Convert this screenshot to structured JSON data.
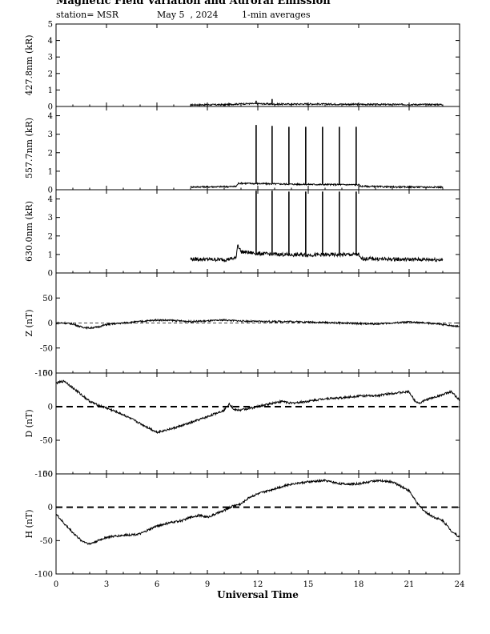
{
  "header": {
    "title": "Magnetic Field Variation and Auroral Emission",
    "station": "station= MSR",
    "date": "May 5  , 2024",
    "averaging": "1-min averages"
  },
  "colors": {
    "trace": "#000000",
    "axis": "#000000",
    "background": "#ffffff"
  },
  "chart_data": [
    {
      "type": "line",
      "ylabel": "427.8nm (kR)",
      "ylim": [
        0,
        5
      ],
      "yticks": [
        0,
        1,
        2,
        3,
        4,
        5
      ],
      "data_x_range": [
        8.0,
        23.0
      ],
      "series": [
        {
          "values": [
            [
              8,
              0.1
            ],
            [
              10,
              0.11
            ],
            [
              11,
              0.16
            ],
            [
              12,
              0.17
            ],
            [
              13,
              0.14
            ],
            [
              15,
              0.15
            ],
            [
              18,
              0.13
            ],
            [
              20,
              0.12
            ],
            [
              23,
              0.12
            ]
          ]
        }
      ],
      "spikes": [
        {
          "x": 11.9,
          "y": 0.35
        },
        {
          "x": 12.85,
          "y": 0.45
        }
      ]
    },
    {
      "type": "line",
      "ylabel": "557.7nm (kR)",
      "ylim": [
        0,
        4.5
      ],
      "yticks": [
        0,
        1,
        2,
        3,
        4
      ],
      "data_x_range": [
        8.0,
        23.0
      ],
      "series": [
        {
          "values": [
            [
              8,
              0.15
            ],
            [
              10.7,
              0.17
            ],
            [
              10.85,
              0.35
            ],
            [
              12,
              0.33
            ],
            [
              14,
              0.3
            ],
            [
              16,
              0.28
            ],
            [
              18,
              0.27
            ],
            [
              18.1,
              0.19
            ],
            [
              20,
              0.15
            ],
            [
              23,
              0.14
            ]
          ]
        }
      ],
      "spikes": [
        {
          "x": 11.9,
          "y": 3.5
        },
        {
          "x": 12.85,
          "y": 3.45
        },
        {
          "x": 13.85,
          "y": 3.4
        },
        {
          "x": 14.85,
          "y": 3.4
        },
        {
          "x": 15.85,
          "y": 3.4
        },
        {
          "x": 16.85,
          "y": 3.4
        },
        {
          "x": 17.85,
          "y": 3.4
        }
      ]
    },
    {
      "type": "line",
      "ylabel": "630.0nm (kR)",
      "ylim": [
        0,
        4.5
      ],
      "yticks": [
        0,
        1,
        2,
        3,
        4
      ],
      "data_x_range": [
        8.0,
        23.0
      ],
      "series": [
        {
          "values": [
            [
              8,
              0.75
            ],
            [
              10,
              0.72
            ],
            [
              10.7,
              0.8
            ],
            [
              10.8,
              1.55
            ],
            [
              11,
              1.15
            ],
            [
              12,
              1.05
            ],
            [
              14,
              0.98
            ],
            [
              16,
              0.98
            ],
            [
              18,
              1.0
            ],
            [
              18.1,
              0.78
            ],
            [
              20,
              0.74
            ],
            [
              23,
              0.72
            ]
          ]
        }
      ],
      "spikes": [
        {
          "x": 11.9,
          "y": 4.45
        },
        {
          "x": 12.85,
          "y": 4.45
        },
        {
          "x": 13.85,
          "y": 4.4
        },
        {
          "x": 14.85,
          "y": 4.4
        },
        {
          "x": 15.85,
          "y": 4.4
        },
        {
          "x": 16.85,
          "y": 4.4
        },
        {
          "x": 17.85,
          "y": 4.4
        }
      ]
    },
    {
      "type": "line",
      "ylabel": "Z (nT)",
      "ylim": [
        -100,
        100
      ],
      "yticks": [
        -100,
        -50,
        0,
        50
      ],
      "baseline": 0,
      "baseline_style": "dashed-thin",
      "series": [
        {
          "values": [
            [
              0,
              0
            ],
            [
              0.5,
              0
            ],
            [
              1,
              -2
            ],
            [
              1.5,
              -8
            ],
            [
              2,
              -10
            ],
            [
              2.5,
              -8
            ],
            [
              3,
              -3
            ],
            [
              4,
              0
            ],
            [
              5,
              3
            ],
            [
              6,
              6
            ],
            [
              7,
              5
            ],
            [
              8,
              3
            ],
            [
              9,
              4
            ],
            [
              10,
              6
            ],
            [
              11,
              4
            ],
            [
              12,
              3
            ],
            [
              13,
              3
            ],
            [
              14,
              3
            ],
            [
              15,
              2
            ],
            [
              16,
              1
            ],
            [
              17,
              0
            ],
            [
              18,
              -1
            ],
            [
              19,
              -2
            ],
            [
              20,
              0
            ],
            [
              21,
              2
            ],
            [
              22,
              0
            ],
            [
              23,
              -3
            ],
            [
              24,
              -7
            ]
          ]
        }
      ]
    },
    {
      "type": "line",
      "ylabel": "D (nT)",
      "ylim": [
        -100,
        50
      ],
      "yticks": [
        -100,
        -50,
        0,
        50
      ],
      "baseline": 0,
      "baseline_style": "dashed-thick",
      "series": [
        {
          "values": [
            [
              0,
              35
            ],
            [
              0.5,
              38
            ],
            [
              1,
              28
            ],
            [
              1.5,
              18
            ],
            [
              2,
              8
            ],
            [
              2.5,
              2
            ],
            [
              3,
              -2
            ],
            [
              4,
              -12
            ],
            [
              5,
              -25
            ],
            [
              6,
              -38
            ],
            [
              7,
              -32
            ],
            [
              8,
              -24
            ],
            [
              9,
              -15
            ],
            [
              10,
              -5
            ],
            [
              10.3,
              5
            ],
            [
              10.6,
              -5
            ],
            [
              11,
              -5
            ],
            [
              12,
              0
            ],
            [
              13,
              6
            ],
            [
              13.5,
              8
            ],
            [
              14,
              5
            ],
            [
              15,
              8
            ],
            [
              16,
              12
            ],
            [
              17,
              13
            ],
            [
              18,
              16
            ],
            [
              19,
              16
            ],
            [
              20,
              20
            ],
            [
              21,
              22
            ],
            [
              21.3,
              10
            ],
            [
              21.6,
              5
            ],
            [
              22,
              10
            ],
            [
              22.5,
              14
            ],
            [
              23,
              18
            ],
            [
              23.5,
              22
            ],
            [
              24,
              10
            ]
          ]
        }
      ]
    },
    {
      "type": "line",
      "ylabel": "H (nT)",
      "ylim": [
        -100,
        50
      ],
      "yticks": [
        -100,
        -50,
        0,
        50
      ],
      "baseline": 0,
      "baseline_style": "dashed-thick",
      "series": [
        {
          "values": [
            [
              0,
              -10
            ],
            [
              0.5,
              -25
            ],
            [
              1,
              -38
            ],
            [
              1.5,
              -50
            ],
            [
              2,
              -55
            ],
            [
              2.5,
              -50
            ],
            [
              3,
              -45
            ],
            [
              4,
              -42
            ],
            [
              5,
              -40
            ],
            [
              6,
              -28
            ],
            [
              7,
              -22
            ],
            [
              7.5,
              -20
            ],
            [
              8,
              -15
            ],
            [
              8.5,
              -12
            ],
            [
              9,
              -15
            ],
            [
              9.5,
              -10
            ],
            [
              10,
              -5
            ],
            [
              10.5,
              2
            ],
            [
              11,
              5
            ],
            [
              11.5,
              15
            ],
            [
              12,
              20
            ],
            [
              13,
              28
            ],
            [
              14,
              35
            ],
            [
              15,
              38
            ],
            [
              16,
              40
            ],
            [
              17,
              35
            ],
            [
              18,
              35
            ],
            [
              19,
              40
            ],
            [
              20,
              38
            ],
            [
              21,
              25
            ],
            [
              21.5,
              5
            ],
            [
              22,
              -8
            ],
            [
              22.5,
              -15
            ],
            [
              23,
              -20
            ],
            [
              23.5,
              -35
            ],
            [
              24,
              -45
            ]
          ]
        }
      ]
    }
  ],
  "x_axis": {
    "label": "Universal Time",
    "range": [
      0,
      24
    ],
    "ticks": [
      0,
      3,
      6,
      9,
      12,
      15,
      18,
      21,
      24
    ]
  }
}
